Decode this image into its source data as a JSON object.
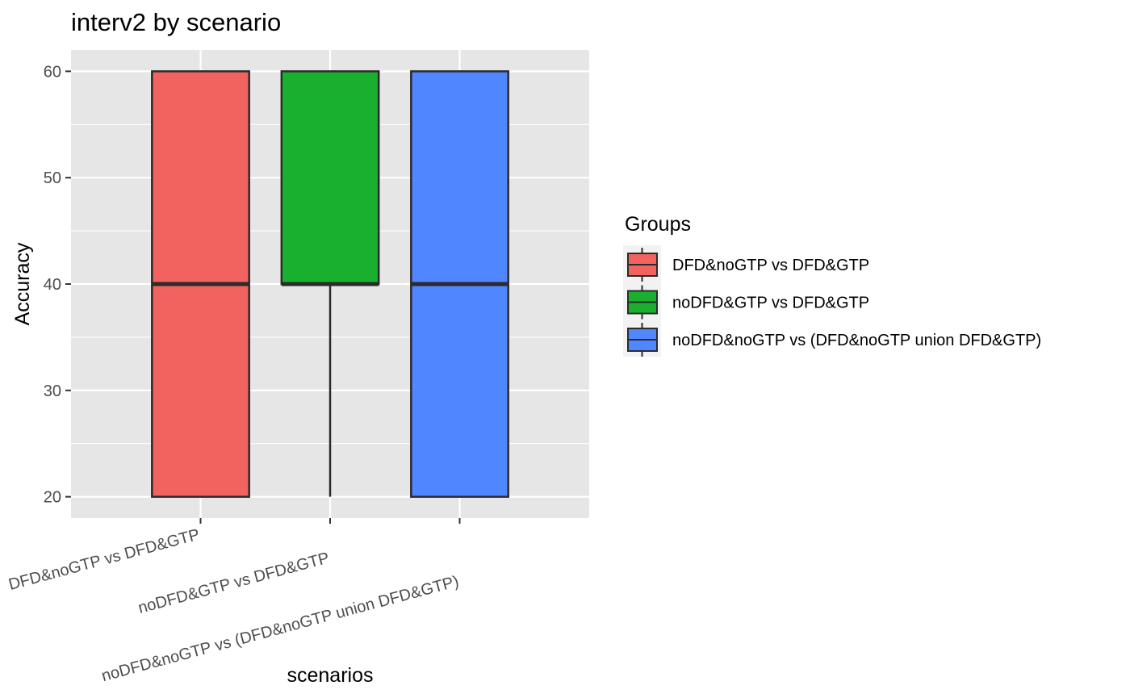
{
  "chart_data": {
    "type": "box",
    "title": "interv2 by scenario",
    "xlabel": "scenarios",
    "ylabel": "Accuracy",
    "ylim": [
      18,
      62
    ],
    "yticks": [
      20,
      30,
      40,
      50,
      60
    ],
    "yticklabels": [
      "20",
      "30",
      "40",
      "50",
      "60"
    ],
    "grid": true,
    "categories": [
      "DFD&noGTP vs DFD&GTP",
      "noDFD&GTP vs DFD&GTP",
      "noDFD&noGTP vs (DFD&noGTP union DFD&GTP)"
    ],
    "series": [
      {
        "name": "DFD&noGTP vs DFD&GTP",
        "color": "#F2625E",
        "min": 20,
        "q1": 20,
        "median": 40,
        "q3": 60,
        "max": 60
      },
      {
        "name": "noDFD&GTP vs DFD&GTP",
        "color": "#1AB02F",
        "min": 20,
        "q1": 40,
        "median": 40,
        "q3": 60,
        "max": 60
      },
      {
        "name": "noDFD&noGTP vs (DFD&noGTP union DFD&GTP)",
        "color": "#5086FF",
        "min": 20,
        "q1": 20,
        "median": 40,
        "q3": 60,
        "max": 60
      }
    ],
    "legend": {
      "title": "Groups",
      "placement": "right"
    },
    "colors": {
      "panel_background": "#E6E6E6",
      "gridline": "#FFFFFF",
      "box_outline": "#2B2B2B",
      "tick_label": "#4D4D4D"
    }
  }
}
